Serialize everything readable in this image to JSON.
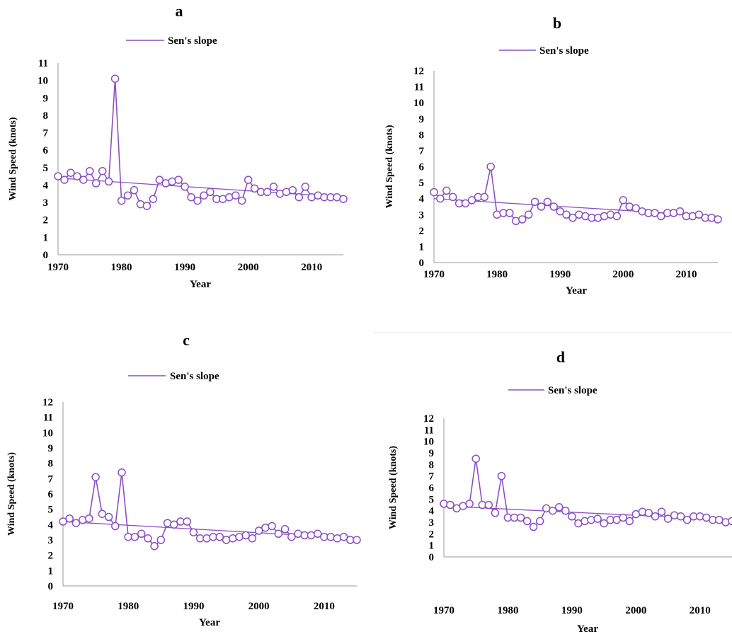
{
  "chart_data": [
    {
      "type": "line",
      "title": "a",
      "xlabel": "Year",
      "ylabel": "Wind Speed (knots)",
      "xlim": [
        1970,
        2015
      ],
      "ylim": [
        0,
        11
      ],
      "yticks": [
        0,
        1,
        2,
        3,
        4,
        5,
        6,
        7,
        8,
        9,
        10,
        11
      ],
      "xticks": [
        1970,
        1980,
        1990,
        2000,
        2010
      ],
      "grid": false,
      "legend": {
        "position": "top",
        "entries": [
          "Sen's slope"
        ]
      },
      "trend": {
        "name": "Sen's slope",
        "x": [
          1970,
          2015
        ],
        "y": [
          4.4,
          3.3
        ]
      },
      "series": [
        {
          "x": [
            1970,
            1971,
            1972,
            1973,
            1974,
            1975,
            1976,
            1977,
            1978,
            1979,
            1980,
            1981,
            1982,
            1983,
            1984,
            1985,
            1986,
            1987,
            1988,
            1989,
            1990,
            1991,
            1992,
            1993,
            1994,
            1995,
            1996,
            1997,
            1998,
            1999,
            2000,
            2001,
            2002,
            2003,
            2004,
            2005,
            2006,
            2007,
            2008,
            2009,
            2010,
            2011,
            2012,
            2013,
            2014,
            2015
          ],
          "values": [
            4.5,
            4.3,
            4.7,
            4.5,
            4.3,
            4.8,
            4.1,
            4.8,
            4.2,
            10.1,
            3.1,
            3.4,
            3.7,
            2.9,
            2.8,
            3.2,
            4.3,
            4.1,
            4.2,
            4.3,
            3.9,
            3.3,
            3.1,
            3.4,
            3.6,
            3.2,
            3.2,
            3.3,
            3.4,
            3.1,
            4.3,
            3.8,
            3.6,
            3.6,
            3.9,
            3.5,
            3.6,
            3.7,
            3.3,
            3.9,
            3.3,
            3.4,
            3.3,
            3.3,
            3.3,
            3.2
          ]
        }
      ],
      "color": "#8a4fc0"
    },
    {
      "type": "line",
      "title": "b",
      "xlabel": "Year",
      "ylabel": "Wind Speed (knots)",
      "xlim": [
        1970,
        2015
      ],
      "ylim": [
        0,
        12
      ],
      "yticks": [
        0,
        1,
        2,
        3,
        4,
        5,
        6,
        7,
        8,
        9,
        10,
        11,
        12
      ],
      "xticks": [
        1970,
        1980,
        1990,
        2000,
        2010
      ],
      "grid": false,
      "legend": {
        "position": "top",
        "entries": [
          "Sen's slope"
        ]
      },
      "trend": {
        "name": "Sen's slope",
        "x": [
          1970,
          2015
        ],
        "y": [
          4.0,
          2.9
        ]
      },
      "series": [
        {
          "x": [
            1970,
            1971,
            1972,
            1973,
            1974,
            1975,
            1976,
            1977,
            1978,
            1979,
            1980,
            1981,
            1982,
            1983,
            1984,
            1985,
            1986,
            1987,
            1988,
            1989,
            1990,
            1991,
            1992,
            1993,
            1994,
            1995,
            1996,
            1997,
            1998,
            1999,
            2000,
            2001,
            2002,
            2003,
            2004,
            2005,
            2006,
            2007,
            2008,
            2009,
            2010,
            2011,
            2012,
            2013,
            2014,
            2015
          ],
          "values": [
            4.4,
            4.0,
            4.5,
            4.1,
            3.7,
            3.7,
            3.9,
            4.1,
            4.1,
            6.0,
            3.0,
            3.1,
            3.1,
            2.6,
            2.7,
            3.0,
            3.8,
            3.5,
            3.8,
            3.5,
            3.2,
            3.0,
            2.8,
            3.0,
            2.9,
            2.8,
            2.8,
            2.9,
            3.0,
            2.9,
            3.9,
            3.5,
            3.4,
            3.2,
            3.1,
            3.1,
            2.9,
            3.1,
            3.1,
            3.2,
            2.9,
            2.9,
            3.0,
            2.8,
            2.8,
            2.7
          ]
        }
      ],
      "color": "#8a4fc0"
    },
    {
      "type": "line",
      "title": "c",
      "xlabel": "Year",
      "ylabel": "Wind Speed (knots)",
      "xlim": [
        1970,
        2015
      ],
      "ylim": [
        0,
        12
      ],
      "yticks": [
        0,
        1,
        2,
        3,
        4,
        5,
        6,
        7,
        8,
        9,
        10,
        11,
        12
      ],
      "xticks": [
        1970,
        1980,
        1990,
        2000,
        2010
      ],
      "grid": false,
      "legend": {
        "position": "top",
        "entries": [
          "Sen's slope"
        ]
      },
      "trend": {
        "name": "Sen's slope",
        "x": [
          1970,
          2015
        ],
        "y": [
          4.2,
          3.1
        ]
      },
      "series": [
        {
          "x": [
            1970,
            1971,
            1972,
            1973,
            1974,
            1975,
            1976,
            1977,
            1978,
            1979,
            1980,
            1981,
            1982,
            1983,
            1984,
            1985,
            1986,
            1987,
            1988,
            1989,
            1990,
            1991,
            1992,
            1993,
            1994,
            1995,
            1996,
            1997,
            1998,
            1999,
            2000,
            2001,
            2002,
            2003,
            2004,
            2005,
            2006,
            2007,
            2008,
            2009,
            2010,
            2011,
            2012,
            2013,
            2014,
            2015
          ],
          "values": [
            4.2,
            4.4,
            4.1,
            4.3,
            4.4,
            7.1,
            4.7,
            4.5,
            3.9,
            7.4,
            3.2,
            3.2,
            3.4,
            3.1,
            2.6,
            3.0,
            4.1,
            4.0,
            4.2,
            4.2,
            3.5,
            3.1,
            3.1,
            3.2,
            3.2,
            3.0,
            3.1,
            3.2,
            3.3,
            3.1,
            3.6,
            3.8,
            3.9,
            3.4,
            3.7,
            3.2,
            3.4,
            3.3,
            3.3,
            3.4,
            3.2,
            3.2,
            3.1,
            3.2,
            3.0,
            3.0
          ]
        }
      ],
      "color": "#8a4fc0"
    },
    {
      "type": "line",
      "title": "d",
      "xlabel": "Year",
      "ylabel": "Wind Speed (knots)",
      "xlim": [
        1970,
        2015
      ],
      "ylim": [
        0,
        12
      ],
      "yticks": [
        0,
        1,
        2,
        3,
        4,
        5,
        6,
        7,
        8,
        9,
        10,
        11,
        12
      ],
      "xticks": [
        1970,
        1980,
        1990,
        2000,
        2010
      ],
      "grid": false,
      "legend": {
        "position": "top",
        "entries": [
          "Sen's slope"
        ]
      },
      "trend": {
        "name": "Sen's slope",
        "x": [
          1970,
          2015
        ],
        "y": [
          4.4,
          3.2
        ]
      },
      "series": [
        {
          "x": [
            1970,
            1971,
            1972,
            1973,
            1974,
            1975,
            1976,
            1977,
            1978,
            1979,
            1980,
            1981,
            1982,
            1983,
            1984,
            1985,
            1986,
            1987,
            1988,
            1989,
            1990,
            1991,
            1992,
            1993,
            1994,
            1995,
            1996,
            1997,
            1998,
            1999,
            2000,
            2001,
            2002,
            2003,
            2004,
            2005,
            2006,
            2007,
            2008,
            2009,
            2010,
            2011,
            2012,
            2013,
            2014,
            2015
          ],
          "values": [
            4.6,
            4.5,
            4.2,
            4.4,
            4.6,
            8.5,
            4.5,
            4.5,
            3.8,
            7.0,
            3.4,
            3.4,
            3.4,
            3.1,
            2.6,
            3.1,
            4.2,
            4.0,
            4.3,
            4.0,
            3.5,
            2.9,
            3.1,
            3.2,
            3.3,
            2.9,
            3.2,
            3.2,
            3.4,
            3.1,
            3.7,
            3.9,
            3.8,
            3.5,
            3.9,
            3.3,
            3.6,
            3.5,
            3.2,
            3.5,
            3.5,
            3.4,
            3.2,
            3.2,
            3.0,
            3.1
          ]
        }
      ],
      "color": "#8a4fc0"
    }
  ]
}
